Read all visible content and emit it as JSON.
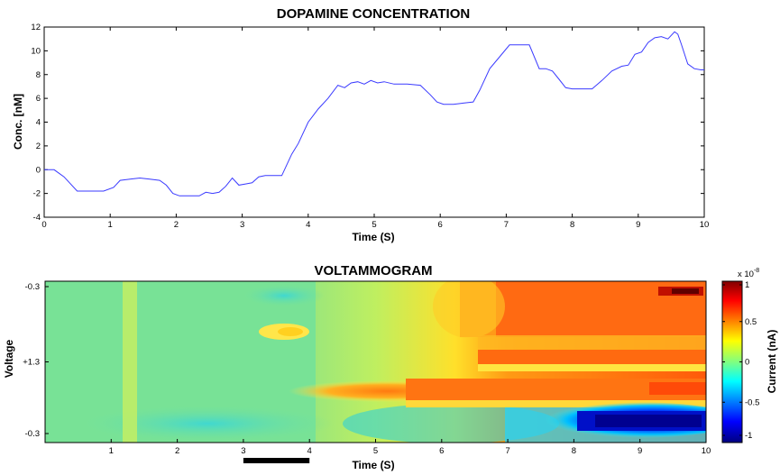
{
  "chart_data": [
    {
      "type": "line",
      "title": "DOPAMINE CONCENTRATION",
      "xlabel": "Time (S)",
      "ylabel": "Conc. [nM]",
      "xlim": [
        0,
        10
      ],
      "ylim": [
        -4,
        12
      ],
      "x_ticks": [
        "0",
        "1",
        "2",
        "3",
        "4",
        "5",
        "6",
        "7",
        "8",
        "9",
        "10"
      ],
      "y_ticks": [
        "-4",
        "-2",
        "0",
        "2",
        "4",
        "6",
        "8",
        "10",
        "12"
      ],
      "grid": false,
      "series": [
        {
          "color": "#3a3aff",
          "x": [
            0,
            0.15,
            0.3,
            0.5,
            0.7,
            0.9,
            1.05,
            1.15,
            1.3,
            1.45,
            1.6,
            1.75,
            1.85,
            1.95,
            2.05,
            2.2,
            2.35,
            2.45,
            2.55,
            2.65,
            2.75,
            2.85,
            2.95,
            3.05,
            3.15,
            3.25,
            3.35,
            3.45,
            3.6,
            3.75,
            3.85,
            4.0,
            4.15,
            4.3,
            4.45,
            4.55,
            4.65,
            4.75,
            4.85,
            4.95,
            5.05,
            5.15,
            5.3,
            5.5,
            5.7,
            5.85,
            5.95,
            6.05,
            6.2,
            6.35,
            6.5,
            6.6,
            6.75,
            6.9,
            7.05,
            7.2,
            7.35,
            7.5,
            7.6,
            7.7,
            7.8,
            7.9,
            8.0,
            8.15,
            8.3,
            8.45,
            8.6,
            8.75,
            8.85,
            8.95,
            9.05,
            9.15,
            9.25,
            9.35,
            9.45,
            9.55,
            9.6,
            9.65,
            9.75,
            9.85,
            9.95,
            10.0
          ],
          "y": [
            0,
            0,
            -0.6,
            -1.8,
            -1.8,
            -1.8,
            -1.5,
            -0.9,
            -0.8,
            -0.7,
            -0.8,
            -0.9,
            -1.3,
            -2.0,
            -2.2,
            -2.2,
            -2.2,
            -1.9,
            -2.0,
            -1.9,
            -1.4,
            -0.7,
            -1.3,
            -1.2,
            -1.1,
            -0.6,
            -0.5,
            -0.5,
            -0.5,
            1.3,
            2.2,
            4.0,
            5.1,
            6.0,
            7.1,
            6.9,
            7.3,
            7.4,
            7.2,
            7.5,
            7.3,
            7.4,
            7.2,
            7.2,
            7.1,
            6.3,
            5.7,
            5.5,
            5.5,
            5.6,
            5.7,
            6.7,
            8.5,
            9.5,
            10.5,
            10.5,
            10.5,
            8.5,
            8.5,
            8.3,
            7.6,
            6.9,
            6.8,
            6.8,
            6.8,
            7.5,
            8.3,
            8.7,
            8.8,
            9.7,
            9.9,
            10.7,
            11.1,
            11.2,
            11.0,
            11.6,
            11.4,
            10.6,
            8.9,
            8.5,
            8.4,
            8.4
          ]
        }
      ]
    },
    {
      "type": "heatmap",
      "title": "VOLTAMMOGRAM",
      "xlabel": "Time (S)",
      "ylabel": "Voltage",
      "xlim": [
        0,
        10
      ],
      "x_ticks": [
        "1",
        "2",
        "3",
        "4",
        "5",
        "6",
        "7",
        "8",
        "9",
        "10"
      ],
      "y_ticks": [
        "-0.3",
        "+1.3",
        "-0.3"
      ],
      "colorbar": {
        "label": "Current (nA)",
        "exponent_label": "x 10",
        "exponent": "-8",
        "ticks": [
          "1",
          "0.5",
          "0",
          "-0.5",
          "-1"
        ],
        "range": [
          -1,
          1
        ],
        "colormap": "jet"
      },
      "scale_bar": {
        "from": 3.0,
        "to": 4.0
      }
    }
  ]
}
